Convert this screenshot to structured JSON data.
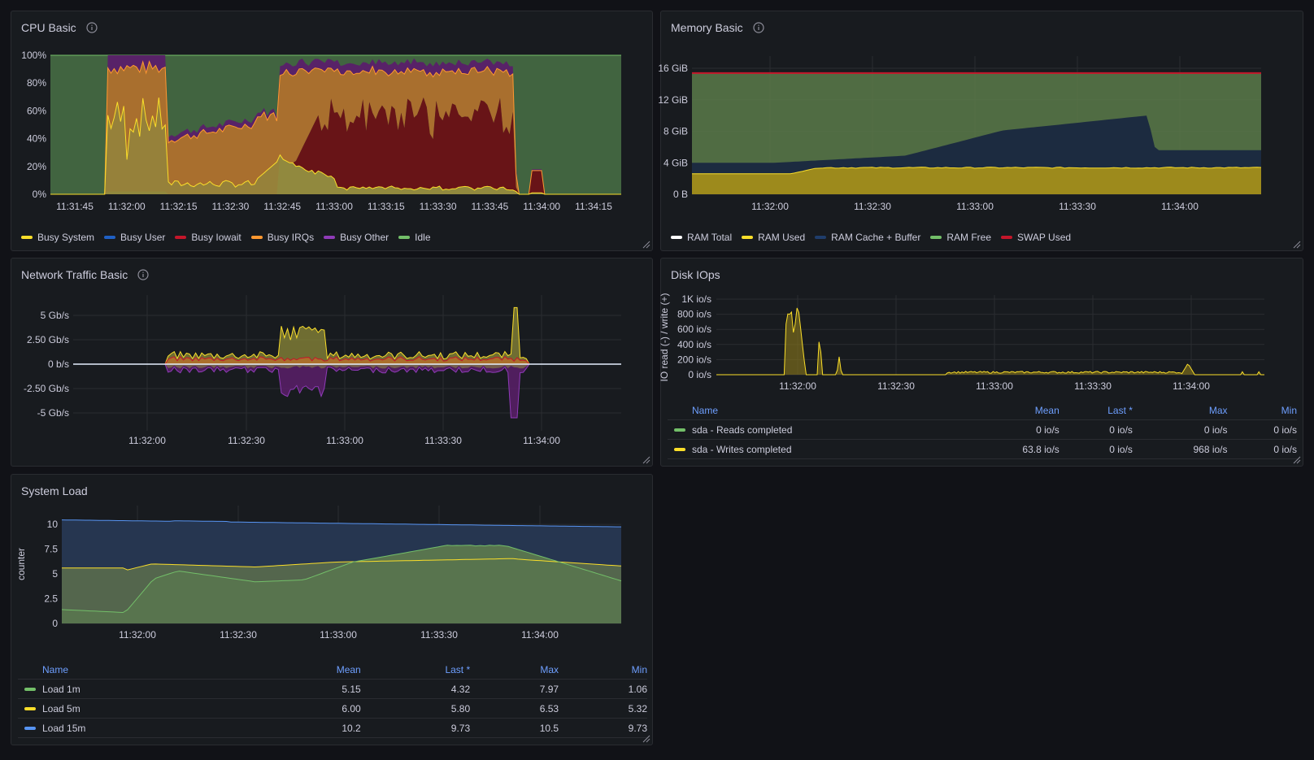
{
  "panels": {
    "cpu": {
      "title": "CPU Basic",
      "chart_data": {
        "type": "area",
        "x": [
          "11:31:45",
          "11:32:00",
          "11:32:15",
          "11:32:30",
          "11:32:45",
          "11:33:00",
          "11:33:15",
          "11:33:30",
          "11:33:45",
          "11:34:00",
          "11:34:15"
        ],
        "y_ticks": [
          "0%",
          "20%",
          "40%",
          "60%",
          "80%",
          "100%"
        ],
        "ylim": [
          0,
          100
        ],
        "series": [
          {
            "name": "Busy System",
            "color": "#fade2a"
          },
          {
            "name": "Busy User",
            "color": "#1f60c4"
          },
          {
            "name": "Busy Iowait",
            "color": "#c4162a"
          },
          {
            "name": "Busy IRQs",
            "color": "#ff9830"
          },
          {
            "name": "Busy Other",
            "color": "#8f3bb8"
          },
          {
            "name": "Idle",
            "color": "#73bf69"
          }
        ]
      }
    },
    "memory": {
      "title": "Memory Basic",
      "chart_data": {
        "type": "area",
        "x": [
          "11:32:00",
          "11:32:30",
          "11:33:00",
          "11:33:30",
          "11:34:00"
        ],
        "y_ticks": [
          "0 B",
          "4 GiB",
          "8 GiB",
          "12 GiB",
          "16 GiB"
        ],
        "ylim": [
          0,
          16
        ],
        "series": [
          {
            "name": "RAM Total",
            "color": "#ffffff"
          },
          {
            "name": "RAM Used",
            "color": "#fade2a"
          },
          {
            "name": "RAM Cache + Buffer",
            "color": "#1f3d6b"
          },
          {
            "name": "RAM Free",
            "color": "#73bf69"
          },
          {
            "name": "SWAP Used",
            "color": "#c4162a"
          }
        ]
      }
    },
    "network": {
      "title": "Network Traffic Basic",
      "chart_data": {
        "type": "area",
        "x": [
          "11:32:00",
          "11:32:30",
          "11:33:00",
          "11:33:30",
          "11:34:00"
        ],
        "y_ticks": [
          "-5 Gb/s",
          "-2.50 Gb/s",
          "0 b/s",
          "2.50 Gb/s",
          "5 Gb/s"
        ],
        "ylim": [
          -7,
          7
        ]
      }
    },
    "disk": {
      "title": "Disk IOps",
      "ylabel": "IO read (-) / write (+)",
      "chart_data": {
        "type": "line",
        "x": [
          "11:32:00",
          "11:32:30",
          "11:33:00",
          "11:33:30",
          "11:34:00"
        ],
        "y_ticks": [
          "0 io/s",
          "200 io/s",
          "400 io/s",
          "600 io/s",
          "800 io/s",
          "1K io/s"
        ],
        "ylim": [
          0,
          1000
        ]
      },
      "legend": {
        "headers": [
          "Name",
          "Mean",
          "Last *",
          "Max",
          "Min"
        ],
        "rows": [
          {
            "name": "sda - Reads completed",
            "color": "#73bf69",
            "mean": "0 io/s",
            "last": "0 io/s",
            "max": "0 io/s",
            "min": "0 io/s"
          },
          {
            "name": "sda - Writes completed",
            "color": "#fade2a",
            "mean": "63.8 io/s",
            "last": "0 io/s",
            "max": "968 io/s",
            "min": "0 io/s"
          }
        ]
      }
    },
    "load": {
      "title": "System Load",
      "ylabel": "counter",
      "chart_data": {
        "type": "area",
        "x": [
          "11:32:00",
          "11:32:30",
          "11:33:00",
          "11:33:30",
          "11:34:00"
        ],
        "y_ticks": [
          "0",
          "2.5",
          "5",
          "7.5",
          "10"
        ],
        "ylim": [
          0,
          10.5
        ]
      },
      "legend": {
        "headers": [
          "Name",
          "Mean",
          "Last *",
          "Max",
          "Min"
        ],
        "rows": [
          {
            "name": "Load 1m",
            "color": "#73bf69",
            "mean": "5.15",
            "last": "4.32",
            "max": "7.97",
            "min": "1.06"
          },
          {
            "name": "Load 5m",
            "color": "#fade2a",
            "mean": "6.00",
            "last": "5.80",
            "max": "6.53",
            "min": "5.32"
          },
          {
            "name": "Load 15m",
            "color": "#5794f2",
            "mean": "10.2",
            "last": "9.73",
            "max": "10.5",
            "min": "9.73"
          }
        ]
      }
    }
  }
}
